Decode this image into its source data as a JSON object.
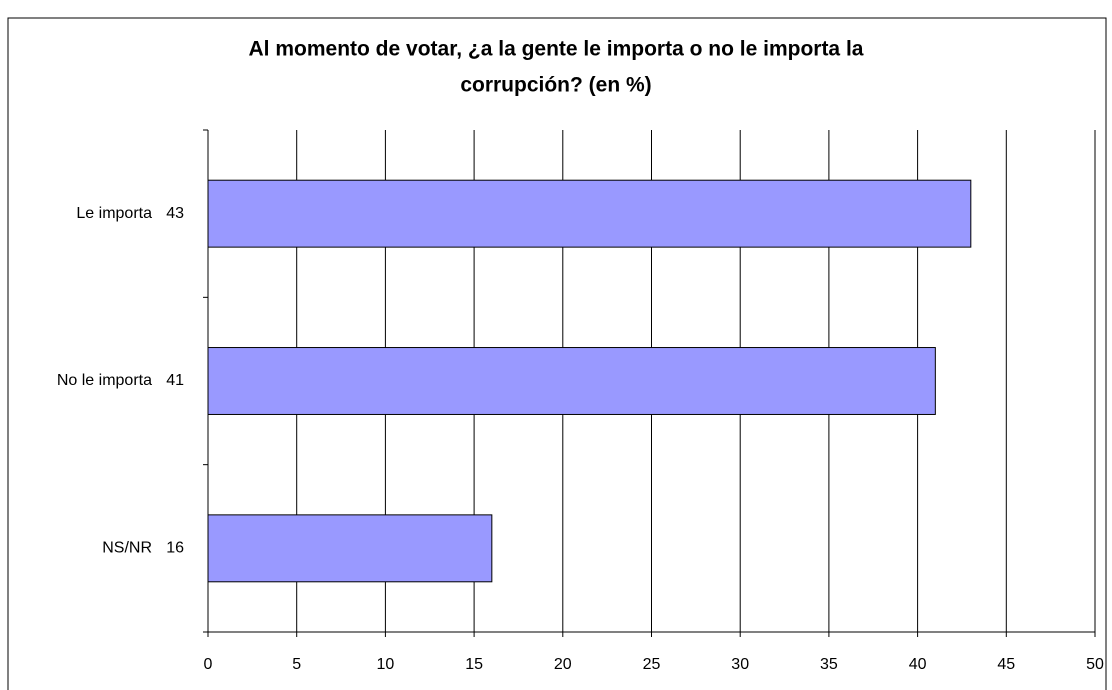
{
  "chart_data": {
    "type": "bar",
    "orientation": "horizontal",
    "title": [
      "Al momento de votar, ¿a la gente le importa o no le importa la",
      "corrupción? (en %)"
    ],
    "categories": [
      "Le importa",
      "No le importa",
      "NS/NR"
    ],
    "values": [
      43,
      41,
      16
    ],
    "color": "#9999ff",
    "xlim": [
      0,
      50
    ],
    "xticks": [
      0,
      5,
      10,
      15,
      20,
      25,
      30,
      35,
      40,
      45,
      50
    ],
    "grid": true
  }
}
